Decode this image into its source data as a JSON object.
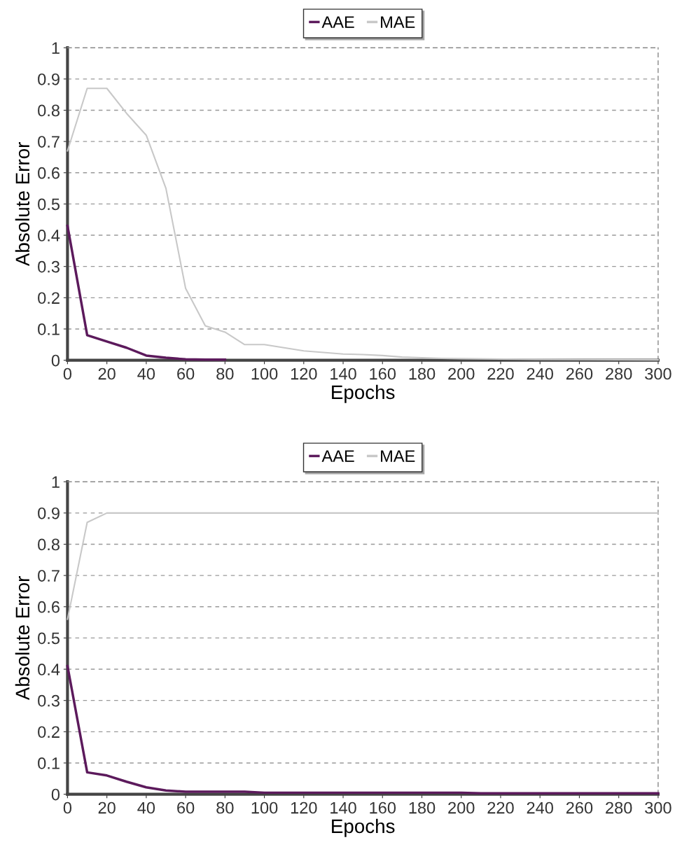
{
  "chart_data": [
    {
      "type": "line",
      "xlabel": "Epochs",
      "ylabel": "Absolute Error",
      "xlim": [
        0,
        300
      ],
      "ylim": [
        0,
        1
      ],
      "xticks": [
        0,
        20,
        40,
        60,
        80,
        100,
        120,
        140,
        160,
        180,
        200,
        220,
        240,
        260,
        280,
        300
      ],
      "yticks": [
        0,
        0.1,
        0.2,
        0.3,
        0.4,
        0.5,
        0.6,
        0.7,
        0.8,
        0.9,
        1
      ],
      "grid": "y",
      "legend": "top",
      "marker": "none",
      "line_style": "solid",
      "series": [
        {
          "name": "AAE",
          "color": "#5c1a5c",
          "x": [
            0,
            10,
            20,
            30,
            40,
            50,
            60,
            70,
            80
          ],
          "values": [
            0.43,
            0.08,
            0.06,
            0.04,
            0.015,
            0.008,
            0.003,
            0.002,
            0.002
          ]
        },
        {
          "name": "MAE",
          "color": "#c8c8c8",
          "x": [
            0,
            10,
            20,
            30,
            40,
            50,
            60,
            70,
            80,
            90,
            100,
            110,
            120,
            130,
            140,
            150,
            160,
            170,
            180,
            190,
            200,
            230,
            260,
            300
          ],
          "values": [
            0.67,
            0.87,
            0.87,
            0.79,
            0.72,
            0.55,
            0.23,
            0.11,
            0.09,
            0.05,
            0.05,
            0.04,
            0.03,
            0.025,
            0.02,
            0.018,
            0.015,
            0.01,
            0.008,
            0.006,
            0.005,
            0.003,
            0.002,
            0.001
          ]
        }
      ]
    },
    {
      "type": "line",
      "xlabel": "Epochs",
      "ylabel": "Absolute Error",
      "xlim": [
        0,
        300
      ],
      "ylim": [
        0,
        1
      ],
      "xticks": [
        0,
        20,
        40,
        60,
        80,
        100,
        120,
        140,
        160,
        180,
        200,
        220,
        240,
        260,
        280,
        300
      ],
      "yticks": [
        0,
        0.1,
        0.2,
        0.3,
        0.4,
        0.5,
        0.6,
        0.7,
        0.8,
        0.9,
        1
      ],
      "grid": "y",
      "legend": "top",
      "marker": "none",
      "line_style": "solid",
      "series": [
        {
          "name": "AAE",
          "color": "#5c1a5c",
          "x": [
            0,
            10,
            20,
            30,
            40,
            50,
            60,
            90,
            100,
            200,
            210,
            300
          ],
          "values": [
            0.41,
            0.07,
            0.06,
            0.04,
            0.022,
            0.012,
            0.008,
            0.008,
            0.005,
            0.005,
            0.003,
            0.003
          ]
        },
        {
          "name": "MAE",
          "color": "#c8c8c8",
          "x": [
            0,
            10,
            20,
            300
          ],
          "values": [
            0.56,
            0.87,
            0.9,
            0.9
          ]
        }
      ]
    }
  ]
}
